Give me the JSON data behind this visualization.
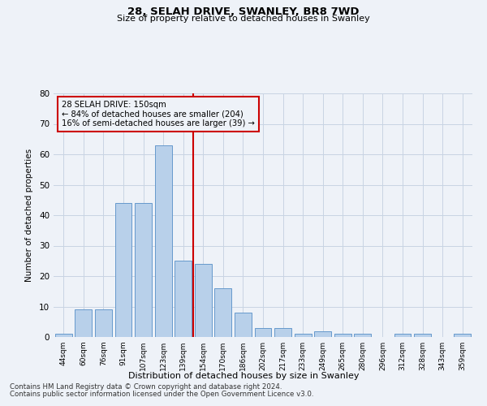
{
  "title1": "28, SELAH DRIVE, SWANLEY, BR8 7WD",
  "title2": "Size of property relative to detached houses in Swanley",
  "xlabel": "Distribution of detached houses by size in Swanley",
  "ylabel": "Number of detached properties",
  "categories": [
    "44sqm",
    "60sqm",
    "76sqm",
    "91sqm",
    "107sqm",
    "123sqm",
    "139sqm",
    "154sqm",
    "170sqm",
    "186sqm",
    "202sqm",
    "217sqm",
    "233sqm",
    "249sqm",
    "265sqm",
    "280sqm",
    "296sqm",
    "312sqm",
    "328sqm",
    "343sqm",
    "359sqm"
  ],
  "values": [
    1,
    9,
    9,
    44,
    44,
    63,
    25,
    24,
    16,
    8,
    3,
    3,
    1,
    2,
    1,
    1,
    0,
    1,
    1,
    0,
    1
  ],
  "bar_color": "#b8d0ea",
  "bar_edge_color": "#6699cc",
  "vline_color": "#cc0000",
  "vline_x": 6.5,
  "annotation_text": "28 SELAH DRIVE: 150sqm\n← 84% of detached houses are smaller (204)\n16% of semi-detached houses are larger (39) →",
  "annotation_box_color": "#cc0000",
  "ylim": [
    0,
    80
  ],
  "yticks": [
    0,
    10,
    20,
    30,
    40,
    50,
    60,
    70,
    80
  ],
  "grid_color": "#c8d4e3",
  "footer1": "Contains HM Land Registry data © Crown copyright and database right 2024.",
  "footer2": "Contains public sector information licensed under the Open Government Licence v3.0.",
  "bg_color": "#eef2f8"
}
